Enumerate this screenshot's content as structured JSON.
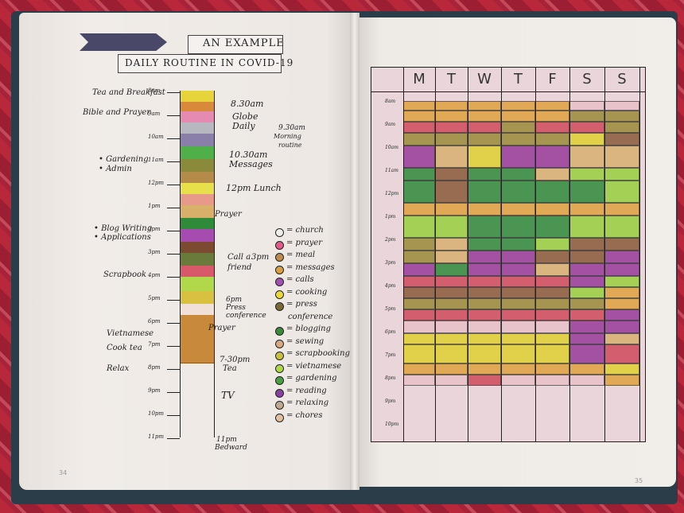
{
  "left_page": {
    "title_line1": "AN EXAMPLE",
    "title_line2": "DAILY ROUTINE IN COVID-19",
    "page_number": "34",
    "strip_segments": [
      {
        "color": "#e6d43a",
        "label": "tea"
      },
      {
        "color": "#d88a3a",
        "label": "bible"
      },
      {
        "color": "#e58ab0",
        "label": "prayer"
      },
      {
        "color": "#b7b7bf",
        "label": "globe"
      },
      {
        "color": "#8a7fa8",
        "label": "daily"
      },
      {
        "color": "#4fb04a",
        "label": "messages"
      },
      {
        "color": "#8a8a3a",
        "label": "admin"
      },
      {
        "color": "#b58b4a",
        "label": "gardening"
      },
      {
        "color": "#e8e04a",
        "label": "lunch"
      },
      {
        "color": "#e89a8a",
        "label": "prayer2"
      },
      {
        "color": "#d8b06a",
        "label": "meal"
      },
      {
        "color": "#2f8a3a",
        "label": "blog"
      },
      {
        "color": "#a64cb0",
        "label": "calls"
      },
      {
        "color": "#7b4a30",
        "label": "scrapbook"
      },
      {
        "color": "#6a7a3a",
        "label": "press"
      },
      {
        "color": "#d85a6a",
        "label": "prayer3"
      },
      {
        "color": "#b0d84a",
        "label": "vietnamese"
      },
      {
        "color": "#d8c040",
        "label": "cook"
      },
      {
        "color": "#f0e0d8",
        "label": "relax"
      },
      {
        "color": "#c88a3a",
        "label": "tv"
      }
    ],
    "time_labels": [
      "8am",
      "9am",
      "10am",
      "11am",
      "12pm",
      "1pm",
      "2pm",
      "3pm",
      "4pm",
      "5pm",
      "6pm",
      "7pm",
      "8pm",
      "9pm",
      "10pm",
      "11pm"
    ],
    "left_notes": [
      {
        "text": "Tea and Breakfast"
      },
      {
        "text": "Bible and Prayer"
      },
      {
        "text": "• Gardening"
      },
      {
        "text": "• Admin"
      },
      {
        "text": "• Blog Writing"
      },
      {
        "text": "• Applications"
      },
      {
        "text": "Scrapbook"
      },
      {
        "text": "Vietnamese"
      },
      {
        "text": "Cook tea"
      },
      {
        "text": "Relax"
      }
    ],
    "right_notes": [
      {
        "text": "8.30am"
      },
      {
        "text": "Globe"
      },
      {
        "text": "Daily"
      },
      {
        "text": "9.30am"
      },
      {
        "text": "Morning"
      },
      {
        "text": "routine"
      },
      {
        "text": "10.30am"
      },
      {
        "text": "Messages"
      },
      {
        "text": "12pm Lunch"
      },
      {
        "text": "Prayer"
      },
      {
        "text": "Call a"
      },
      {
        "text": "friend"
      },
      {
        "text": "3pm"
      },
      {
        "text": "6pm"
      },
      {
        "text": "Press"
      },
      {
        "text": "conference"
      },
      {
        "text": "Prayer"
      },
      {
        "text": "7-30pm"
      },
      {
        "text": "Tea"
      },
      {
        "text": "TV"
      },
      {
        "text": "11pm"
      },
      {
        "text": "Bedward"
      }
    ],
    "legend": [
      {
        "text": "= church",
        "color": "#f0eee8"
      },
      {
        "text": "= prayer",
        "color": "#e25a8a"
      },
      {
        "text": "= meal",
        "color": "#c08a4a"
      },
      {
        "text": "= messages",
        "color": "#d8a040"
      },
      {
        "text": "= calls",
        "color": "#a050b0"
      },
      {
        "text": "= cooking",
        "color": "#e8d83a"
      },
      {
        "text": "= press",
        "color": "#7a6a3a"
      },
      {
        "text": "conference",
        "color": ""
      },
      {
        "text": "= blogging",
        "color": "#3a8a3a"
      },
      {
        "text": "= sewing",
        "color": "#d8a880"
      },
      {
        "text": "= scrapbooking",
        "color": "#c8c040"
      },
      {
        "text": "= vietnamese",
        "color": "#b0d84a"
      },
      {
        "text": "= gardening",
        "color": "#4aa040"
      },
      {
        "text": "= reading",
        "color": "#8a40a0"
      },
      {
        "text": "= relaxing",
        "color": "#c0a890"
      },
      {
        "text": "= chores",
        "color": "#e0c0a0"
      }
    ]
  },
  "right_page": {
    "page_number": "35",
    "days": [
      "M",
      "T",
      "W",
      "T",
      "F",
      "S",
      "S"
    ],
    "hour_labels": [
      "8am",
      "9am",
      "10am",
      "11am",
      "12pm",
      "1pm",
      "2pm",
      "3pm",
      "4pm",
      "5pm",
      "6pm",
      "7pm",
      "8pm",
      "9pm",
      "10pm"
    ]
  },
  "palette": {
    "orange": "#e0a040",
    "red": "#d04a5a",
    "olive": "#9a8a3a",
    "purple": "#9a3a9a",
    "green": "#2f8a3a",
    "lime": "#9ad040",
    "yellow": "#e0d030",
    "brown": "#8a5a3a",
    "tan": "#d8b070",
    "pink": "#e8c0c8"
  }
}
